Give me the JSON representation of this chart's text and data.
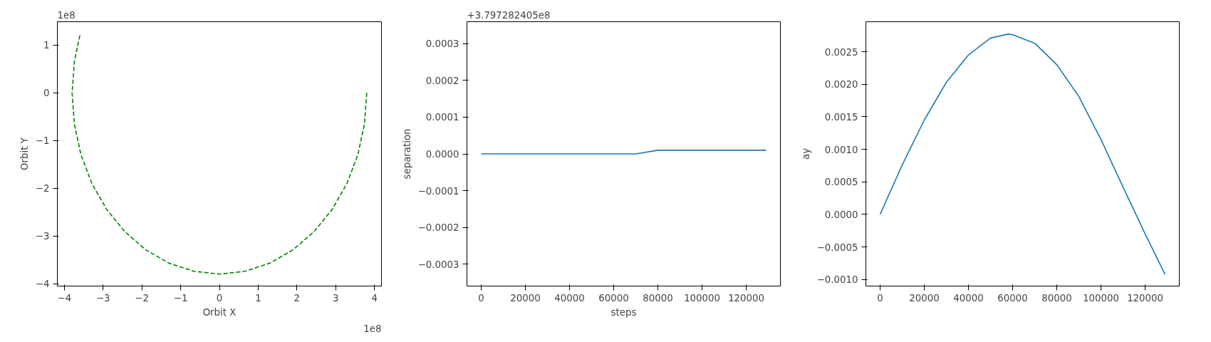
{
  "chart_data": [
    {
      "type": "line",
      "xlabel": "Orbit X",
      "ylabel": "Orbit Y",
      "annotations": [
        "1e8",
        "1e8"
      ],
      "grid": false,
      "marker": "none",
      "line_style": "dashed",
      "xlim": [
        -4.18,
        4.18
      ],
      "ylim": [
        -4.05,
        1.49
      ],
      "xticks": [
        -4,
        -3,
        -2,
        -1,
        0,
        1,
        2,
        3,
        4
      ],
      "yticks": [
        -4,
        -3,
        -2,
        -1,
        0,
        1
      ],
      "series": [
        {
          "color": "#008000",
          "x": [
            3.8,
            3.74,
            3.57,
            3.29,
            2.91,
            2.44,
            1.9,
            1.3,
            0.66,
            0,
            -0.66,
            -1.3,
            -1.9,
            -2.44,
            -2.91,
            -3.29,
            -3.57,
            -3.74,
            -3.8,
            -3.74,
            -3.59
          ],
          "values": [
            0,
            -0.66,
            -1.3,
            -1.9,
            -2.44,
            -2.91,
            -3.29,
            -3.57,
            -3.74,
            -3.8,
            -3.74,
            -3.57,
            -3.29,
            -2.91,
            -2.44,
            -1.9,
            -1.3,
            -0.66,
            0,
            0.66,
            1.24
          ]
        }
      ]
    },
    {
      "type": "line",
      "xlabel": "steps",
      "ylabel": "separation",
      "annotations": [
        "+3.797282405e8"
      ],
      "grid": false,
      "marker": "none",
      "line_style": "solid",
      "xlim": [
        -6450,
        135450
      ],
      "ylim": [
        -0.00036,
        0.00036
      ],
      "xticks": [
        0,
        20000,
        40000,
        60000,
        80000,
        100000,
        120000
      ],
      "yticks": [
        {
          "value": -0.0003,
          "label": "−0.0003"
        },
        {
          "value": -0.0002,
          "label": "−0.0002"
        },
        {
          "value": -0.0001,
          "label": "−0.0001"
        },
        {
          "value": 0,
          "label": "0.0000"
        },
        {
          "value": 0.0001,
          "label": "0.0001"
        },
        {
          "value": 0.0002,
          "label": "0.0002"
        },
        {
          "value": 0.0003,
          "label": "0.0003"
        }
      ],
      "series": [
        {
          "color": "#1f77b4",
          "x": [
            0,
            10000,
            20000,
            30000,
            40000,
            50000,
            60000,
            70000,
            80000,
            90000,
            100000,
            110000,
            120000,
            129000
          ],
          "values": [
            0,
            0,
            0,
            0,
            0,
            0,
            0,
            0,
            1e-05,
            1e-05,
            1e-05,
            1e-05,
            1e-05,
            1e-05
          ]
        }
      ]
    },
    {
      "type": "line",
      "ylabel": "ay",
      "grid": false,
      "marker": "none",
      "line_style": "solid",
      "xlim": [
        -6450,
        135450
      ],
      "ylim": [
        -0.0011,
        0.00296
      ],
      "xticks": [
        0,
        20000,
        40000,
        60000,
        80000,
        100000,
        120000
      ],
      "yticks": [
        {
          "value": -0.001,
          "label": "−0.0010"
        },
        {
          "value": -0.0005,
          "label": "−0.0005"
        },
        {
          "value": 0,
          "label": "0.0000"
        },
        {
          "value": 0.0005,
          "label": "0.0005"
        },
        {
          "value": 0.001,
          "label": "0.0010"
        },
        {
          "value": 0.0015,
          "label": "0.0015"
        },
        {
          "value": 0.002,
          "label": "0.0020"
        },
        {
          "value": 0.0025,
          "label": "0.0025"
        }
      ],
      "series": [
        {
          "color": "#1f77b4",
          "x": [
            0,
            10000,
            20000,
            30000,
            40000,
            50000,
            58000,
            60000,
            70000,
            80000,
            90000,
            100000,
            110000,
            120000,
            129000
          ],
          "values": [
            0,
            0.00076,
            0.00145,
            0.00203,
            0.00245,
            0.00271,
            0.00277,
            0.00276,
            0.00263,
            0.0023,
            0.00181,
            0.00115,
            0.00042,
            -0.0003,
            -0.00092
          ]
        }
      ]
    }
  ]
}
